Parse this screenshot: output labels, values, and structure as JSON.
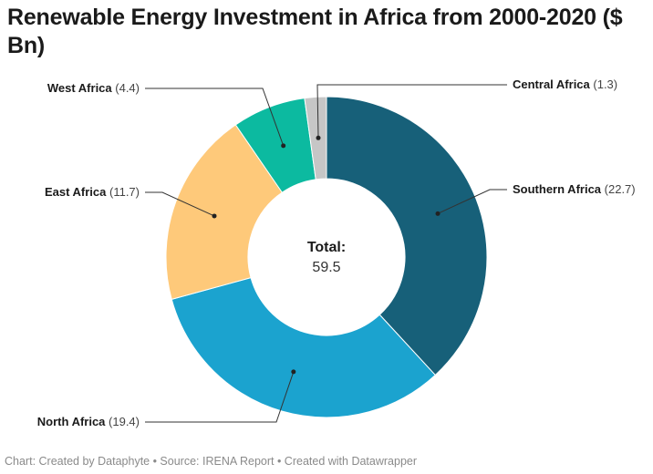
{
  "chart_data": {
    "type": "pie",
    "variant": "donut",
    "title": "Renewable Energy Investment in Africa from 2000-2020 ($ Bn)",
    "unit": "$ Bn",
    "slices": [
      {
        "name": "Southern Africa",
        "value": 22.7,
        "value_label": "(22.7)",
        "color": "#176079"
      },
      {
        "name": "North Africa",
        "value": 19.4,
        "value_label": "(19.4)",
        "color": "#1ba3cf"
      },
      {
        "name": "East Africa",
        "value": 11.7,
        "value_label": "(11.7)",
        "color": "#fec97a"
      },
      {
        "name": "West Africa",
        "value": 4.4,
        "value_label": "(4.4)",
        "color": "#0cbaa0"
      },
      {
        "name": "Central Africa",
        "value": 1.3,
        "value_label": "(1.3)",
        "color": "#c6c6c6"
      }
    ],
    "center_label": "Total:",
    "center_value": "59.5",
    "legend": "none"
  },
  "title": "Renewable Energy Investment in Africa from 2000-2020 ($ Bn)",
  "footer": "Chart: Created by Dataphyte • Source: IRENA Report • Created with Datawrapper"
}
